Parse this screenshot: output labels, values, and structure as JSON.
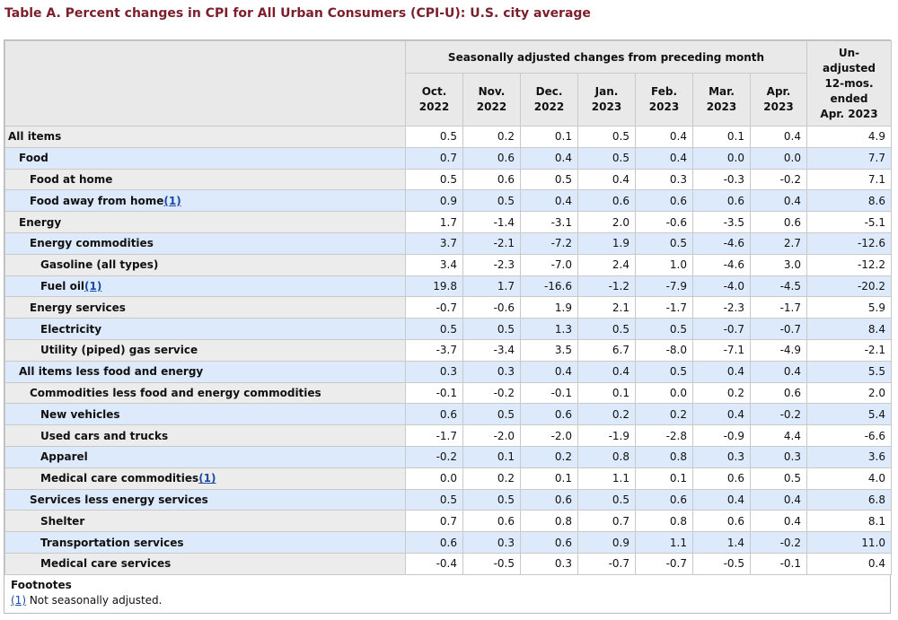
{
  "title": "Table A. Percent changes in CPI for All Urban Consumers (CPI-U): U.S. city average",
  "header": {
    "group_label": "Seasonally adjusted changes from preceding month",
    "months": [
      {
        "line1": "Oct.",
        "line2": "2022"
      },
      {
        "line1": "Nov.",
        "line2": "2022"
      },
      {
        "line1": "Dec.",
        "line2": "2022"
      },
      {
        "line1": "Jan.",
        "line2": "2023"
      },
      {
        "line1": "Feb.",
        "line2": "2023"
      },
      {
        "line1": "Mar.",
        "line2": "2023"
      },
      {
        "line1": "Apr.",
        "line2": "2023"
      }
    ],
    "unadjusted": [
      "Un-",
      "adjusted",
      "12-mos.",
      "ended",
      "Apr. 2023"
    ]
  },
  "rows": [
    {
      "label": "All items",
      "level": 0,
      "footnote": "",
      "values": [
        "0.5",
        "0.2",
        "0.1",
        "0.5",
        "0.4",
        "0.1",
        "0.4",
        "4.9"
      ]
    },
    {
      "label": "Food",
      "level": 1,
      "footnote": "",
      "values": [
        "0.7",
        "0.6",
        "0.4",
        "0.5",
        "0.4",
        "0.0",
        "0.0",
        "7.7"
      ]
    },
    {
      "label": "Food at home",
      "level": 2,
      "footnote": "",
      "values": [
        "0.5",
        "0.6",
        "0.5",
        "0.4",
        "0.3",
        "-0.3",
        "-0.2",
        "7.1"
      ]
    },
    {
      "label": "Food away from home",
      "level": 2,
      "footnote": "(1)",
      "values": [
        "0.9",
        "0.5",
        "0.4",
        "0.6",
        "0.6",
        "0.6",
        "0.4",
        "8.6"
      ]
    },
    {
      "label": "Energy",
      "level": 1,
      "footnote": "",
      "values": [
        "1.7",
        "-1.4",
        "-3.1",
        "2.0",
        "-0.6",
        "-3.5",
        "0.6",
        "-5.1"
      ]
    },
    {
      "label": "Energy commodities",
      "level": 2,
      "footnote": "",
      "values": [
        "3.7",
        "-2.1",
        "-7.2",
        "1.9",
        "0.5",
        "-4.6",
        "2.7",
        "-12.6"
      ]
    },
    {
      "label": "Gasoline (all types)",
      "level": 3,
      "footnote": "",
      "values": [
        "3.4",
        "-2.3",
        "-7.0",
        "2.4",
        "1.0",
        "-4.6",
        "3.0",
        "-12.2"
      ]
    },
    {
      "label": "Fuel oil",
      "level": 3,
      "footnote": "(1)",
      "values": [
        "19.8",
        "1.7",
        "-16.6",
        "-1.2",
        "-7.9",
        "-4.0",
        "-4.5",
        "-20.2"
      ]
    },
    {
      "label": "Energy services",
      "level": 2,
      "footnote": "",
      "values": [
        "-0.7",
        "-0.6",
        "1.9",
        "2.1",
        "-1.7",
        "-2.3",
        "-1.7",
        "5.9"
      ]
    },
    {
      "label": "Electricity",
      "level": 3,
      "footnote": "",
      "values": [
        "0.5",
        "0.5",
        "1.3",
        "0.5",
        "0.5",
        "-0.7",
        "-0.7",
        "8.4"
      ]
    },
    {
      "label": "Utility (piped) gas service",
      "level": 3,
      "footnote": "",
      "values": [
        "-3.7",
        "-3.4",
        "3.5",
        "6.7",
        "-8.0",
        "-7.1",
        "-4.9",
        "-2.1"
      ]
    },
    {
      "label": "All items less food and energy",
      "level": 1,
      "footnote": "",
      "values": [
        "0.3",
        "0.3",
        "0.4",
        "0.4",
        "0.5",
        "0.4",
        "0.4",
        "5.5"
      ]
    },
    {
      "label": "Commodities less food and energy commodities",
      "level": 2,
      "footnote": "",
      "values": [
        "-0.1",
        "-0.2",
        "-0.1",
        "0.1",
        "0.0",
        "0.2",
        "0.6",
        "2.0"
      ]
    },
    {
      "label": "New vehicles",
      "level": 3,
      "footnote": "",
      "values": [
        "0.6",
        "0.5",
        "0.6",
        "0.2",
        "0.2",
        "0.4",
        "-0.2",
        "5.4"
      ]
    },
    {
      "label": "Used cars and trucks",
      "level": 3,
      "footnote": "",
      "values": [
        "-1.7",
        "-2.0",
        "-2.0",
        "-1.9",
        "-2.8",
        "-0.9",
        "4.4",
        "-6.6"
      ]
    },
    {
      "label": "Apparel",
      "level": 3,
      "footnote": "",
      "values": [
        "-0.2",
        "0.1",
        "0.2",
        "0.8",
        "0.8",
        "0.3",
        "0.3",
        "3.6"
      ]
    },
    {
      "label": "Medical care commodities",
      "level": 3,
      "footnote": "(1)",
      "values": [
        "0.0",
        "0.2",
        "0.1",
        "1.1",
        "0.1",
        "0.6",
        "0.5",
        "4.0"
      ]
    },
    {
      "label": "Services less energy services",
      "level": 2,
      "footnote": "",
      "values": [
        "0.5",
        "0.5",
        "0.6",
        "0.5",
        "0.6",
        "0.4",
        "0.4",
        "6.8"
      ]
    },
    {
      "label": "Shelter",
      "level": 3,
      "footnote": "",
      "values": [
        "0.7",
        "0.6",
        "0.8",
        "0.7",
        "0.8",
        "0.6",
        "0.4",
        "8.1"
      ]
    },
    {
      "label": "Transportation services",
      "level": 3,
      "footnote": "",
      "values": [
        "0.6",
        "0.3",
        "0.6",
        "0.9",
        "1.1",
        "1.4",
        "-0.2",
        "11.0"
      ]
    },
    {
      "label": "Medical care services",
      "level": 3,
      "footnote": "",
      "values": [
        "-0.4",
        "-0.5",
        "0.3",
        "-0.7",
        "-0.7",
        "-0.5",
        "-0.1",
        "0.4"
      ]
    }
  ],
  "footnotes": {
    "title": "Footnotes",
    "items": [
      {
        "ref": "(1)",
        "text": " Not seasonally adjusted."
      }
    ]
  },
  "colors": {
    "title": "#7a1f2b",
    "header_bg": "#e9e9e9",
    "alt_row_bg": "#ddeafc",
    "link": "#1a4aa8"
  }
}
